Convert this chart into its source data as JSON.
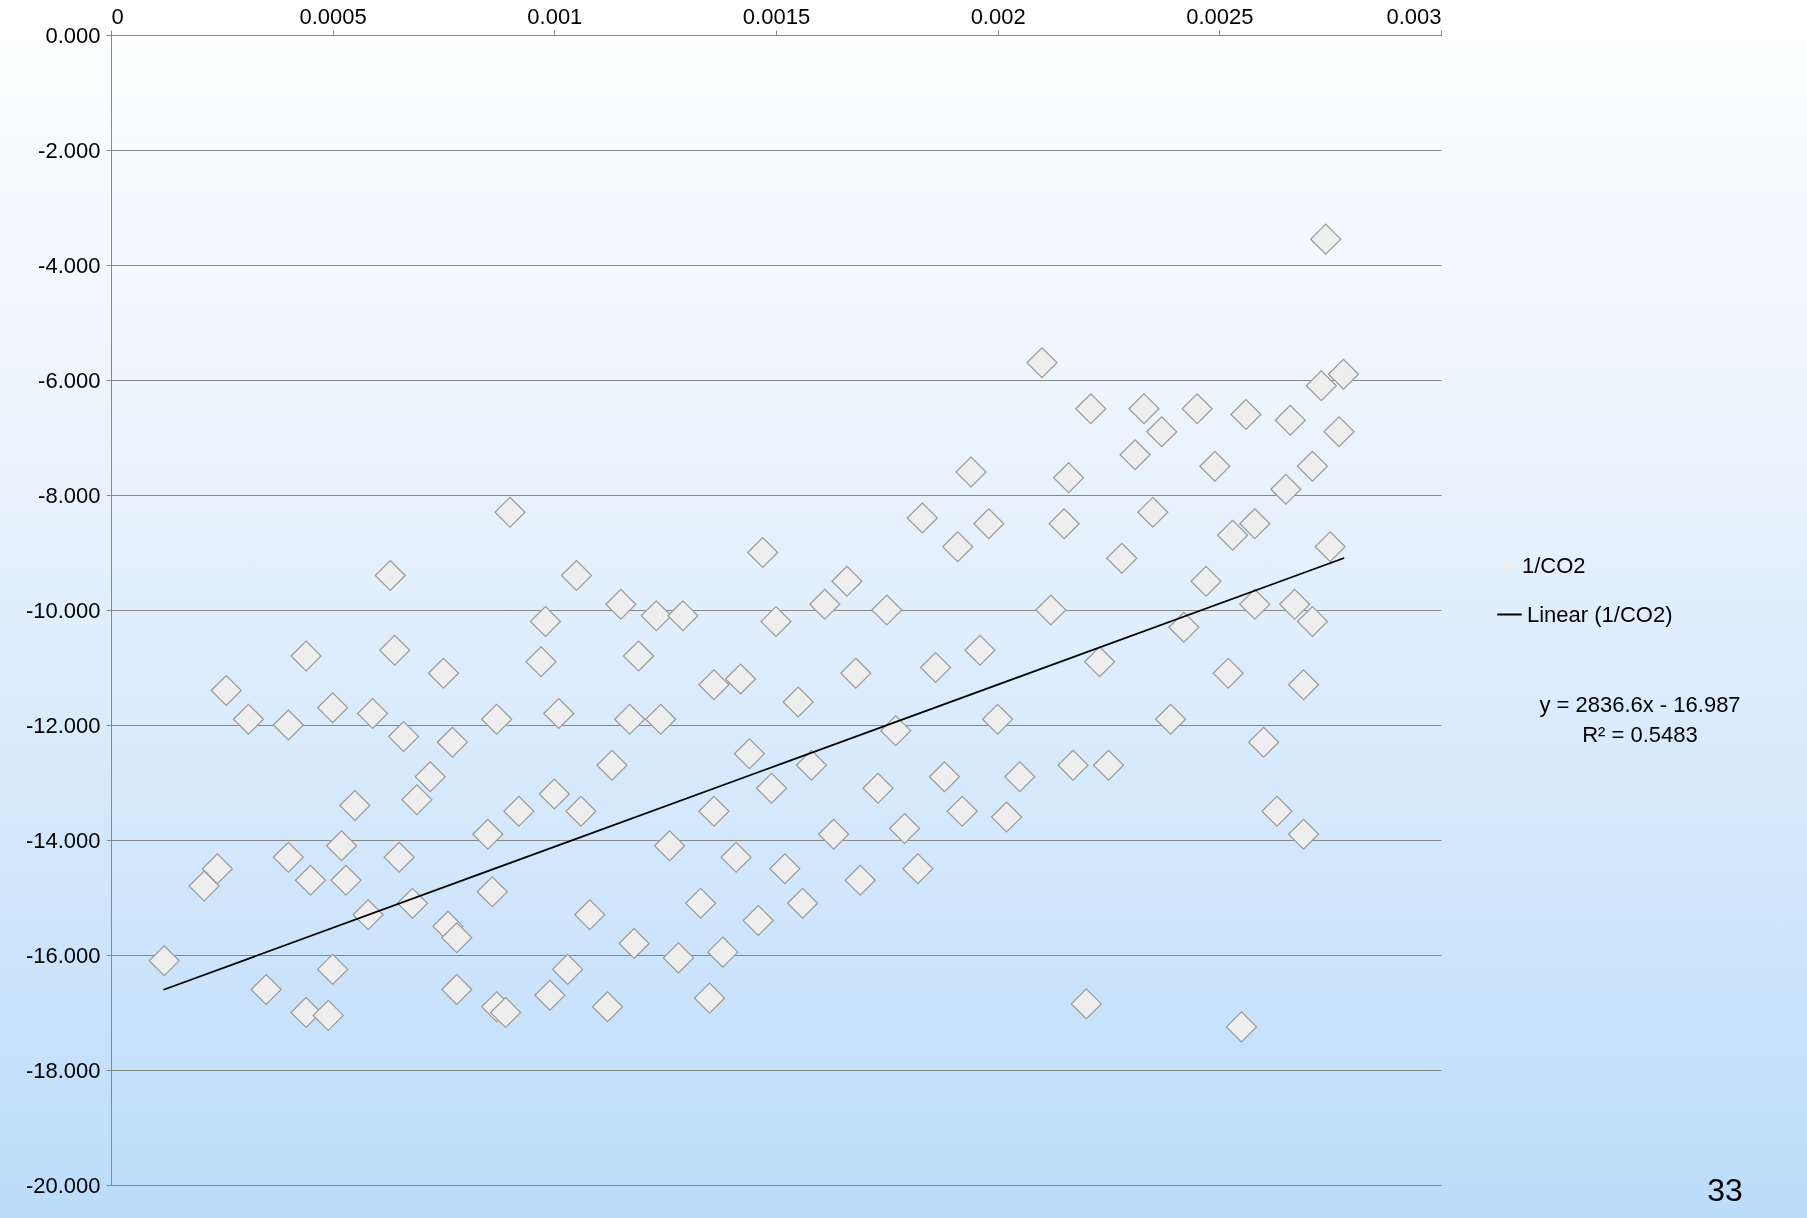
{
  "chart_data": {
    "type": "scatter",
    "grid": "y",
    "legend": "right",
    "xlim": [
      0,
      0.003
    ],
    "xticks": [
      0,
      0.0005,
      0.001,
      0.0015,
      0.002,
      0.0025,
      0.003
    ],
    "ylim": [
      -20,
      0
    ],
    "yticks": [
      {
        "value": 0,
        "label": "0.000"
      },
      {
        "value": -2,
        "label": "-2.000"
      },
      {
        "value": -4,
        "label": "-4.000"
      },
      {
        "value": -6,
        "label": "-6.000"
      },
      {
        "value": -8,
        "label": "-8.000"
      },
      {
        "value": -10,
        "label": "-10.000"
      },
      {
        "value": -12,
        "label": "-12.000"
      },
      {
        "value": -14,
        "label": "-14.000"
      },
      {
        "value": -16,
        "label": "-16.000"
      },
      {
        "value": -18,
        "label": "-18.000"
      },
      {
        "value": -20,
        "label": "-20.000"
      }
    ],
    "annotations": [
      "y = 2836.6x - 16.987",
      "R² = 0.5483",
      "33"
    ],
    "series": [
      {
        "name": "1/CO2",
        "marker": "diamond",
        "color": "#eeeeee",
        "x": [
          0.00012,
          0.00021,
          0.00024,
          0.00026,
          0.00031,
          0.00035,
          0.0004,
          0.0004,
          0.00044,
          0.00044,
          0.00045,
          0.00049,
          0.0005,
          0.0005,
          0.00052,
          0.00053,
          0.00055,
          0.00058,
          0.00059,
          0.00063,
          0.00064,
          0.00065,
          0.00066,
          0.00068,
          0.00069,
          0.00072,
          0.00075,
          0.00076,
          0.00077,
          0.00078,
          0.00078,
          0.00085,
          0.00087,
          0.00087,
          0.00086,
          0.00089,
          0.0009,
          0.00092,
          0.00097,
          0.00098,
          0.00099,
          0.001,
          0.00101,
          0.00103,
          0.00105,
          0.00106,
          0.00108,
          0.00112,
          0.00113,
          0.00115,
          0.00117,
          0.00118,
          0.00119,
          0.00123,
          0.00124,
          0.00126,
          0.00128,
          0.00129,
          0.00133,
          0.00135,
          0.00136,
          0.00136,
          0.00138,
          0.00141,
          0.00142,
          0.00144,
          0.00146,
          0.00147,
          0.00149,
          0.0015,
          0.00152,
          0.00155,
          0.00156,
          0.00158,
          0.00161,
          0.00163,
          0.00166,
          0.00168,
          0.00169,
          0.00173,
          0.00175,
          0.00177,
          0.00179,
          0.00182,
          0.00183,
          0.00186,
          0.00188,
          0.00191,
          0.00192,
          0.00194,
          0.00196,
          0.00198,
          0.002,
          0.00202,
          0.00205,
          0.0021,
          0.00212,
          0.00215,
          0.00216,
          0.00217,
          0.0022,
          0.00221,
          0.00223,
          0.00225,
          0.00228,
          0.00231,
          0.00233,
          0.00235,
          0.00237,
          0.00239,
          0.00242,
          0.00245,
          0.00247,
          0.00249,
          0.00252,
          0.00253,
          0.00255,
          0.00256,
          0.00258,
          0.0026,
          0.00263,
          0.00265,
          0.00266,
          0.00267,
          0.00269,
          0.00269,
          0.00271,
          0.00273,
          0.00274,
          0.00275,
          0.00277,
          0.00278,
          0.00271,
          0.00258
        ],
        "values": [
          -16.1,
          -14.8,
          -14.5,
          -11.4,
          -11.9,
          -16.6,
          -14.3,
          -12.0,
          -10.8,
          -17.0,
          -14.7,
          -17.05,
          -16.25,
          -11.7,
          -14.1,
          -14.7,
          -13.4,
          -15.3,
          -11.8,
          -9.4,
          -10.7,
          -14.3,
          -12.2,
          -15.1,
          -13.3,
          -12.9,
          -11.1,
          -15.5,
          -12.3,
          -16.6,
          -15.7,
          -13.9,
          -16.9,
          -11.9,
          -14.9,
          -17.0,
          -8.3,
          -13.5,
          -10.9,
          -10.2,
          -16.7,
          -13.2,
          -11.8,
          -16.25,
          -9.4,
          -13.5,
          -15.3,
          -16.9,
          -12.7,
          -9.9,
          -11.9,
          -15.8,
          -10.8,
          -10.1,
          -11.9,
          -14.1,
          -16.05,
          -10.1,
          -15.1,
          -16.75,
          -11.3,
          -13.5,
          -15.95,
          -14.3,
          -11.2,
          -12.5,
          -15.4,
          -9.0,
          -13.1,
          -10.2,
          -14.5,
          -11.6,
          -15.1,
          -12.7,
          -9.9,
          -13.9,
          -9.5,
          -11.1,
          -14.7,
          -13.1,
          -10.0,
          -12.1,
          -13.8,
          -14.5,
          -8.4,
          -11.0,
          -12.9,
          -8.9,
          -13.5,
          -7.6,
          -10.7,
          -8.5,
          -11.9,
          -13.6,
          -12.9,
          -5.7,
          -10.0,
          -8.5,
          -7.7,
          -12.7,
          -16.85,
          -6.5,
          -10.9,
          -12.7,
          -9.1,
          -7.3,
          -6.5,
          -8.3,
          -6.9,
          -11.9,
          -10.3,
          -6.5,
          -9.5,
          -7.5,
          -11.1,
          -8.7,
          -17.25,
          -6.6,
          -9.9,
          -12.3,
          -13.5,
          -7.9,
          -6.7,
          -9.9,
          -13.9,
          -11.3,
          -7.5,
          -6.1,
          -3.55,
          -8.9,
          -6.9,
          -5.9,
          -10.2,
          -8.5
        ]
      },
      {
        "name": "Linear (1/CO2)",
        "type": "line",
        "marker": "none",
        "line_style": "solid",
        "color": "#000000",
        "x": [
          0.00012,
          0.00278
        ],
        "values": [
          -16.6,
          -9.1
        ]
      }
    ]
  }
}
